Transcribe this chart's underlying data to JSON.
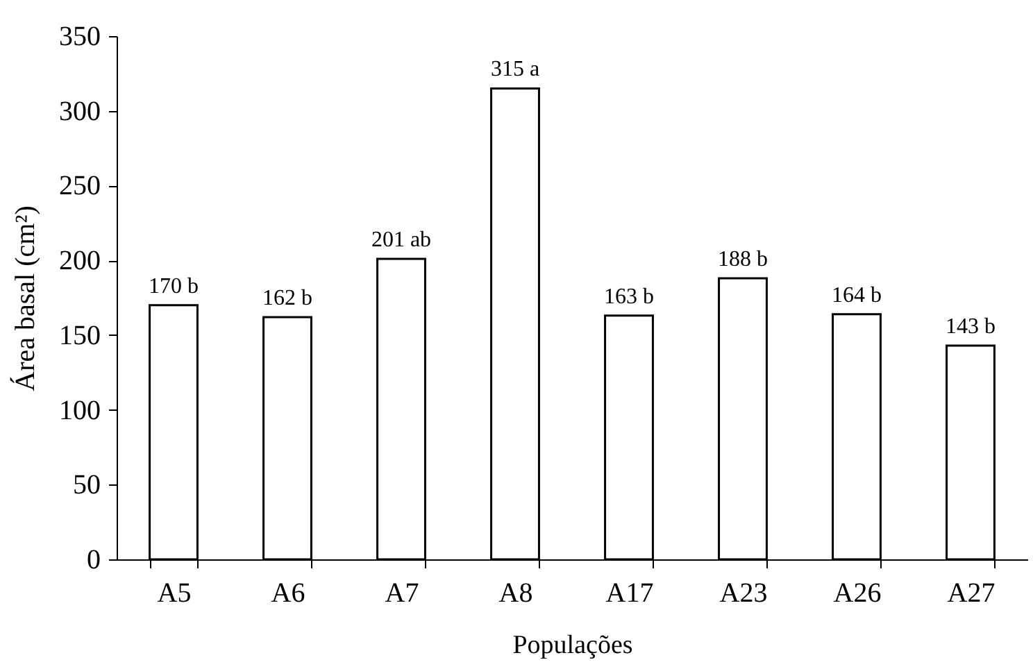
{
  "chart_data": {
    "type": "bar",
    "xlabel": "Populações",
    "ylabel": "Área basal (cm²)",
    "categories": [
      "A5",
      "A6",
      "A7",
      "A8",
      "A17",
      "A23",
      "A26",
      "A27"
    ],
    "values": [
      170,
      162,
      201,
      315,
      163,
      188,
      164,
      143
    ],
    "value_labels": [
      "170 b",
      "162 b",
      "201 ab",
      "315 a",
      "163 b",
      "188 b",
      "164 b",
      "143 b"
    ],
    "color": "#ffffff",
    "ylim": [
      0,
      350
    ],
    "yticks": [
      0,
      50,
      100,
      150,
      200,
      250,
      300,
      350
    ],
    "grid": false
  }
}
